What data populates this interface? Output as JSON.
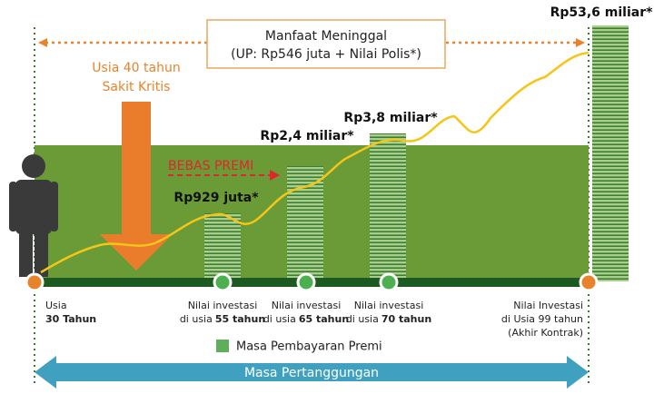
{
  "header": {
    "title": "Manfaat Meninggal",
    "subtitle": "(UP: Rp546 juta + Nilai Polis*)"
  },
  "critical_illness": {
    "line1": "Usia 40 tahun",
    "line2": "Sakit Kritis"
  },
  "premium_waiver": "BEBAS PREMI",
  "start": {
    "line1": "Usia",
    "line2": "30 Tahun"
  },
  "milestones": [
    {
      "value": "Rp929 juta*",
      "line1": "Nilai investasi",
      "prefix": "di usia",
      "age": "55 tahun"
    },
    {
      "value": "Rp2,4 miliar*",
      "line1": "Nilai investasi",
      "prefix": "di usia",
      "age": "65 tahun"
    },
    {
      "value": "Rp3,8 miliar*",
      "line1": "Nilai investasi",
      "prefix": "di usia",
      "age": "70 tahun"
    }
  ],
  "end": {
    "value": "Rp53,6 miliar*",
    "line1": "Nilai Investasi",
    "line2": "di Usia 99 tahun",
    "line3": "(Akhir Kontrak)"
  },
  "legend": "Masa Pembayaran Premi",
  "coverage": "Masa Pertanggungan"
}
